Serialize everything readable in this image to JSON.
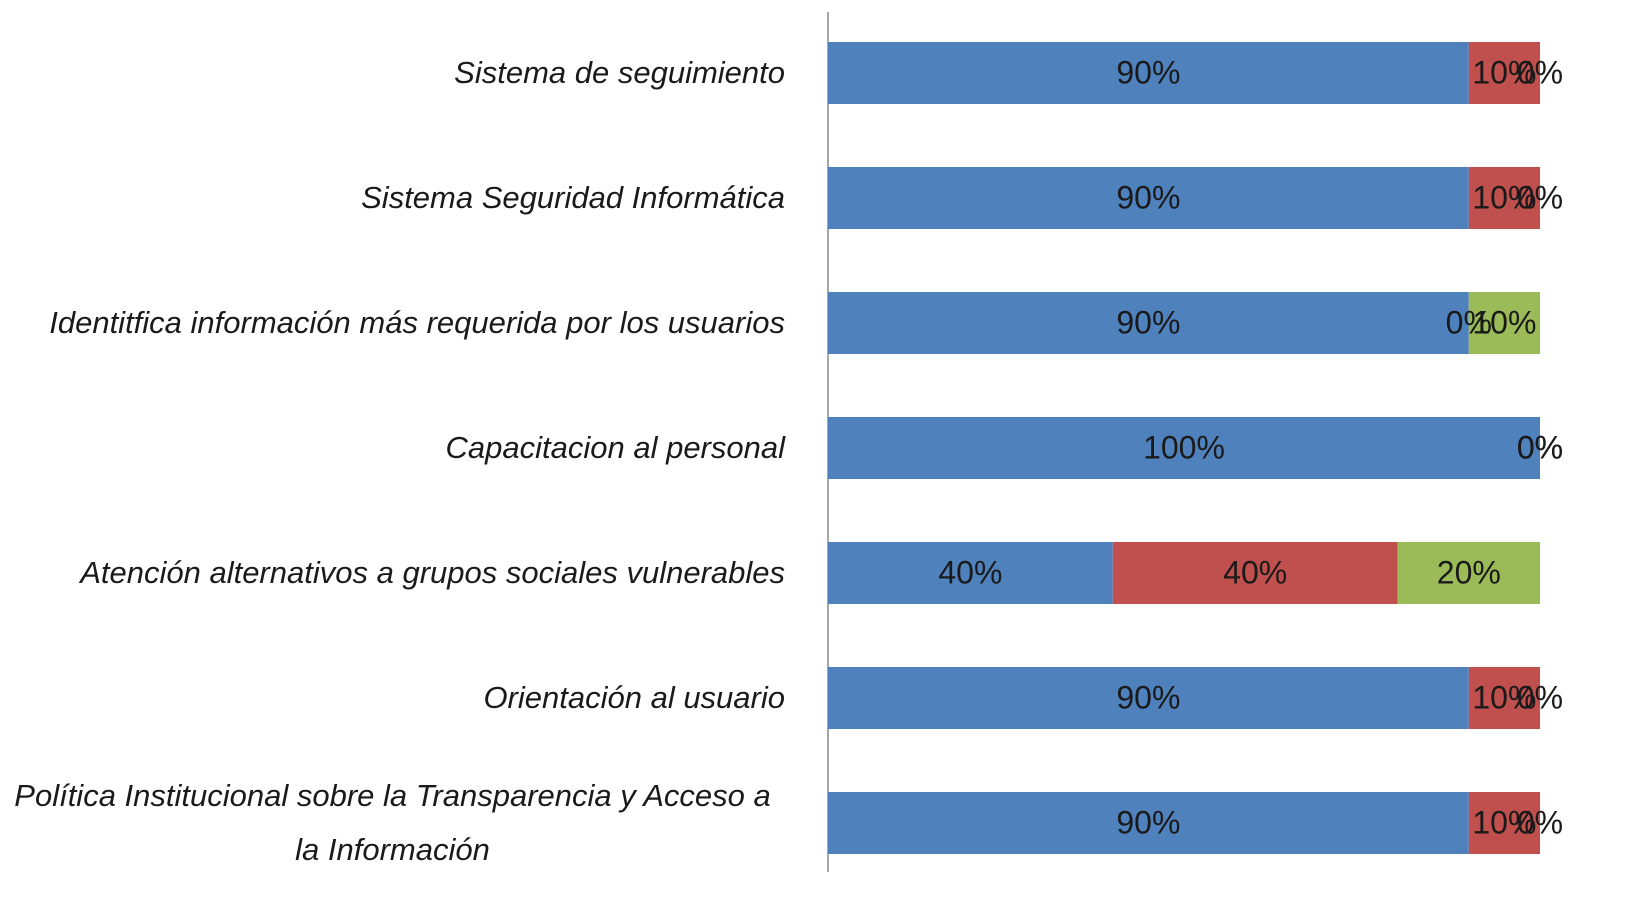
{
  "chart_data": {
    "type": "stacked-barh",
    "categories": [
      "Sistema de seguimiento",
      "Sistema Seguridad Informática ",
      "Identitfica información más requerida por los usuarios",
      "Capacitacion al personal",
      "Atención alternativos a grupos sociales vulnerables",
      "Orientación al usuario",
      "Política Institucional sobre la Transparencia y Acceso a la Información"
    ],
    "series": [
      {
        "color": "#4f81bd",
        "values": [
          90,
          90,
          90,
          100,
          40,
          90,
          90
        ],
        "value_labels": [
          "90%",
          "90%",
          "90%",
          "100%",
          "40%",
          "90%",
          "90%"
        ]
      },
      {
        "color": "#c0504d",
        "values": [
          10,
          10,
          0,
          0,
          40,
          10,
          10
        ],
        "value_labels": [
          "10%",
          "10%",
          "0%",
          "0%",
          "40%",
          "10%",
          "10%"
        ]
      },
      {
        "color": "#9bbb59",
        "values": [
          0,
          0,
          10,
          0,
          20,
          0,
          0
        ],
        "value_labels": [
          "0%",
          "0%",
          "10%",
          "0%",
          "20%",
          "0%",
          "0%"
        ]
      }
    ],
    "xlim": [
      0,
      100
    ]
  }
}
